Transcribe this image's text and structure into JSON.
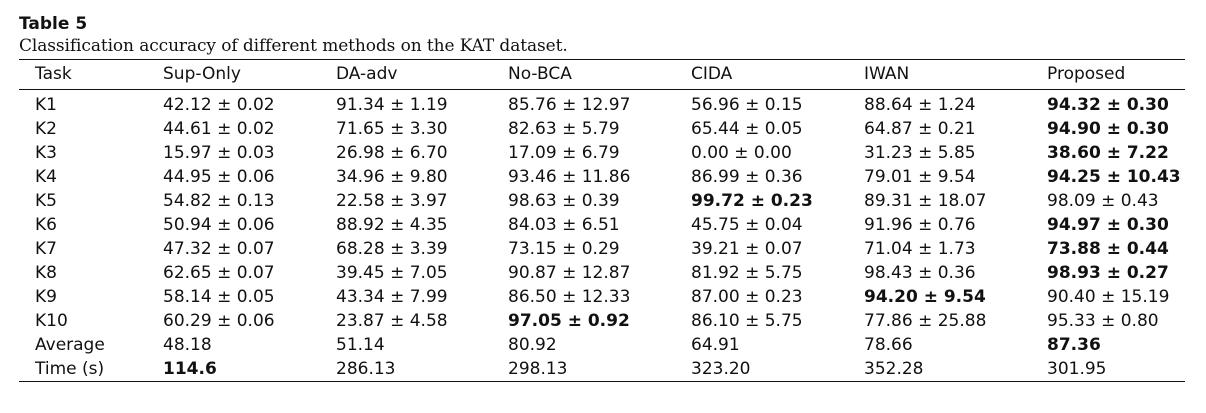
{
  "table_label": "Table 5",
  "caption": "Classification accuracy of different methods on the KAT dataset.",
  "columns": [
    "Task",
    "Sup-Only",
    "DA-adv",
    "No-BCA",
    "CIDA",
    "IWAN",
    "Proposed"
  ],
  "rows": [
    {
      "task": "K1",
      "cells": [
        {
          "v": "42.12 ± 0.02",
          "b": false
        },
        {
          "v": "91.34 ± 1.19",
          "b": false
        },
        {
          "v": "85.76 ± 12.97",
          "b": false
        },
        {
          "v": "56.96 ± 0.15",
          "b": false
        },
        {
          "v": "88.64 ± 1.24",
          "b": false
        },
        {
          "v": "94.32 ± 0.30",
          "b": true
        }
      ]
    },
    {
      "task": "K2",
      "cells": [
        {
          "v": "44.61 ± 0.02",
          "b": false
        },
        {
          "v": "71.65 ± 3.30",
          "b": false
        },
        {
          "v": "82.63 ± 5.79",
          "b": false
        },
        {
          "v": "65.44 ± 0.05",
          "b": false
        },
        {
          "v": "64.87 ± 0.21",
          "b": false
        },
        {
          "v": "94.90 ± 0.30",
          "b": true
        }
      ]
    },
    {
      "task": "K3",
      "cells": [
        {
          "v": "15.97 ± 0.03",
          "b": false
        },
        {
          "v": "26.98 ± 6.70",
          "b": false
        },
        {
          "v": "17.09 ± 6.79",
          "b": false
        },
        {
          "v": "0.00 ± 0.00",
          "b": false
        },
        {
          "v": "31.23 ± 5.85",
          "b": false
        },
        {
          "v": "38.60 ± 7.22",
          "b": true
        }
      ]
    },
    {
      "task": "K4",
      "cells": [
        {
          "v": "44.95 ± 0.06",
          "b": false
        },
        {
          "v": "34.96 ± 9.80",
          "b": false
        },
        {
          "v": "93.46 ± 11.86",
          "b": false
        },
        {
          "v": "86.99 ± 0.36",
          "b": false
        },
        {
          "v": "79.01 ± 9.54",
          "b": false
        },
        {
          "v": "94.25 ± 10.43",
          "b": true
        }
      ]
    },
    {
      "task": "K5",
      "cells": [
        {
          "v": "54.82 ± 0.13",
          "b": false
        },
        {
          "v": "22.58 ± 3.97",
          "b": false
        },
        {
          "v": "98.63 ± 0.39",
          "b": false
        },
        {
          "v": "99.72 ± 0.23",
          "b": true
        },
        {
          "v": "89.31 ± 18.07",
          "b": false
        },
        {
          "v": "98.09 ± 0.43",
          "b": false
        }
      ]
    },
    {
      "task": "K6",
      "cells": [
        {
          "v": "50.94 ± 0.06",
          "b": false
        },
        {
          "v": "88.92 ± 4.35",
          "b": false
        },
        {
          "v": "84.03 ± 6.51",
          "b": false
        },
        {
          "v": "45.75 ± 0.04",
          "b": false
        },
        {
          "v": "91.96 ± 0.76",
          "b": false
        },
        {
          "v": "94.97 ± 0.30",
          "b": true
        }
      ]
    },
    {
      "task": "K7",
      "cells": [
        {
          "v": "47.32 ± 0.07",
          "b": false
        },
        {
          "v": "68.28 ± 3.39",
          "b": false
        },
        {
          "v": "73.15 ± 0.29",
          "b": false
        },
        {
          "v": "39.21 ± 0.07",
          "b": false
        },
        {
          "v": "71.04 ± 1.73",
          "b": false
        },
        {
          "v": "73.88 ± 0.44",
          "b": true
        }
      ]
    },
    {
      "task": "K8",
      "cells": [
        {
          "v": "62.65 ± 0.07",
          "b": false
        },
        {
          "v": "39.45 ± 7.05",
          "b": false
        },
        {
          "v": "90.87 ± 12.87",
          "b": false
        },
        {
          "v": "81.92 ± 5.75",
          "b": false
        },
        {
          "v": "98.43 ± 0.36",
          "b": false
        },
        {
          "v": "98.93 ± 0.27",
          "b": true
        }
      ]
    },
    {
      "task": "K9",
      "cells": [
        {
          "v": "58.14 ± 0.05",
          "b": false
        },
        {
          "v": "43.34 ± 7.99",
          "b": false
        },
        {
          "v": "86.50 ± 12.33",
          "b": false
        },
        {
          "v": "87.00 ± 0.23",
          "b": false
        },
        {
          "v": "94.20 ± 9.54",
          "b": true
        },
        {
          "v": "90.40 ± 15.19",
          "b": false
        }
      ]
    },
    {
      "task": "K10",
      "cells": [
        {
          "v": "60.29 ± 0.06",
          "b": false
        },
        {
          "v": "23.87 ± 4.58",
          "b": false
        },
        {
          "v": "97.05 ± 0.92",
          "b": true
        },
        {
          "v": "86.10 ± 5.75",
          "b": false
        },
        {
          "v": "77.86 ± 25.88",
          "b": false
        },
        {
          "v": "95.33 ± 0.80",
          "b": false
        }
      ]
    },
    {
      "task": "Average",
      "cells": [
        {
          "v": "48.18",
          "b": false
        },
        {
          "v": "51.14",
          "b": false
        },
        {
          "v": "80.92",
          "b": false
        },
        {
          "v": "64.91",
          "b": false
        },
        {
          "v": "78.66",
          "b": false
        },
        {
          "v": "87.36",
          "b": true
        }
      ]
    },
    {
      "task": "Time (s)",
      "cells": [
        {
          "v": "114.6",
          "b": true
        },
        {
          "v": "286.13",
          "b": false
        },
        {
          "v": "298.13",
          "b": false
        },
        {
          "v": "323.20",
          "b": false
        },
        {
          "v": "352.28",
          "b": false
        },
        {
          "v": "301.95",
          "b": false
        }
      ]
    }
  ]
}
